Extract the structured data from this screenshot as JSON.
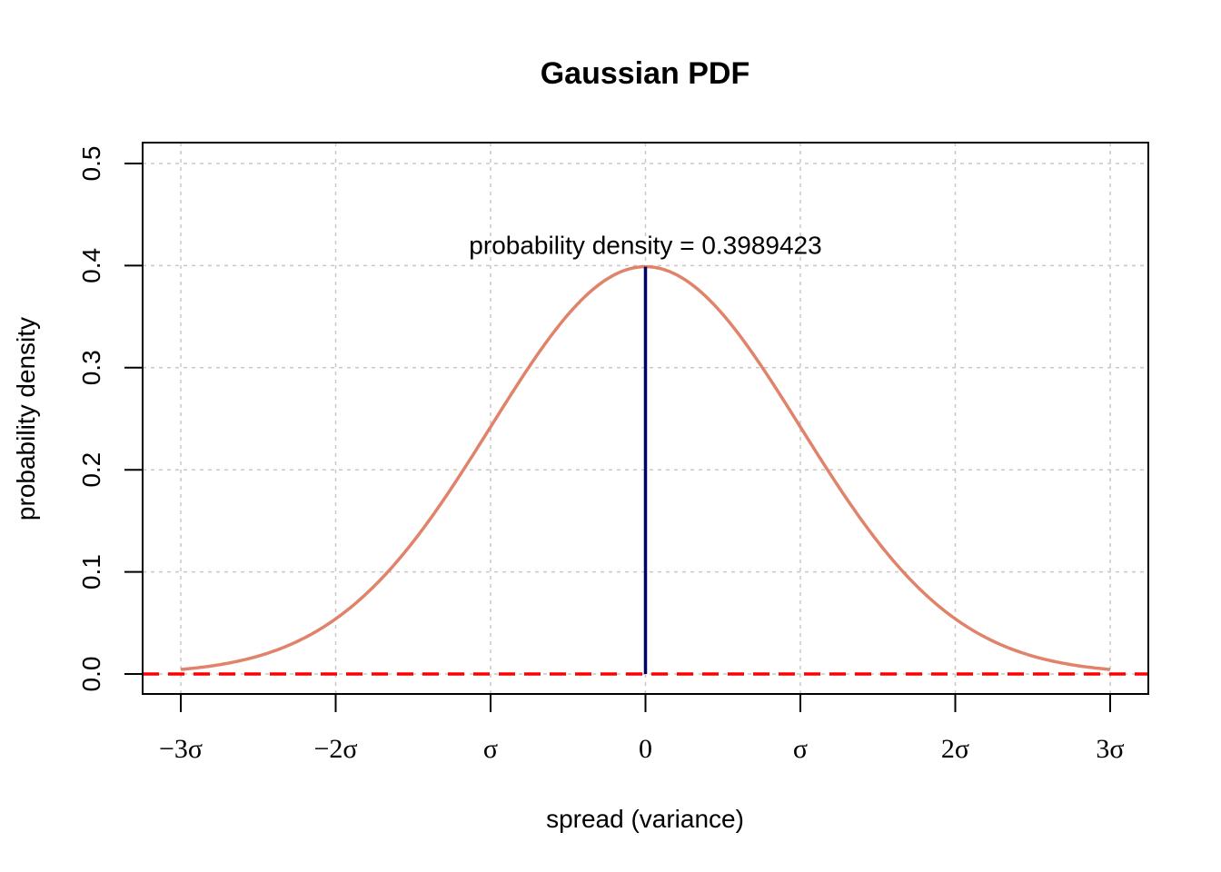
{
  "chart_data": {
    "type": "line",
    "title": "Gaussian PDF",
    "xlabel": "spread (variance)",
    "ylabel": "probability density",
    "xlim": [
      -3,
      3
    ],
    "ylim": [
      0,
      0.5
    ],
    "x_ticks": [
      {
        "value": -3,
        "label": "−3σ"
      },
      {
        "value": -2,
        "label": "−2σ"
      },
      {
        "value": -1,
        "label": "σ"
      },
      {
        "value": 0,
        "label": "0"
      },
      {
        "value": 1,
        "label": "σ"
      },
      {
        "value": 2,
        "label": "2σ"
      },
      {
        "value": 3,
        "label": "3σ"
      }
    ],
    "y_ticks": [
      {
        "value": 0.0,
        "label": "0.0"
      },
      {
        "value": 0.1,
        "label": "0.1"
      },
      {
        "value": 0.2,
        "label": "0.2"
      },
      {
        "value": 0.3,
        "label": "0.3"
      },
      {
        "value": 0.4,
        "label": "0.4"
      },
      {
        "value": 0.5,
        "label": "0.5"
      }
    ],
    "grid": true,
    "series": [
      {
        "kind": "curve",
        "color": "#E0836A",
        "mean": 0,
        "sd": 1,
        "x_range": [
          -3,
          3
        ]
      }
    ],
    "peak_line": {
      "x": 0,
      "y_from": 0,
      "y_to": 0.3989423,
      "color": "#000066"
    },
    "baseline": {
      "y": 0,
      "color": "#FF0000",
      "style": "dashed"
    },
    "annotation": {
      "text": "probability density = 0.3989423",
      "x": 0,
      "y": 0.3989423
    }
  }
}
